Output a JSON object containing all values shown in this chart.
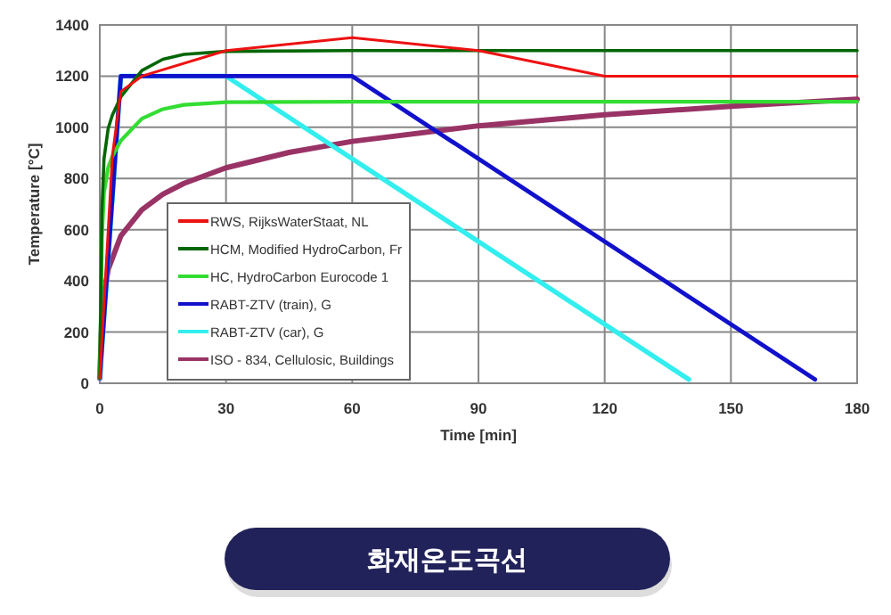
{
  "chart_data": {
    "type": "line",
    "xlabel": "Time [min]",
    "ylabel": "Temperature [°C]",
    "xlim": [
      0,
      180
    ],
    "ylim": [
      0,
      1400
    ],
    "xticks": [
      0,
      30,
      60,
      90,
      120,
      150,
      180
    ],
    "yticks": [
      0,
      200,
      400,
      600,
      800,
      1000,
      1200,
      1400
    ],
    "grid": true,
    "legend": "bottom left",
    "series": [
      {
        "name": "RWS, RijksWaterStaat, NL",
        "color": "#ee1111",
        "x": [
          0,
          3,
          5,
          10,
          30,
          60,
          90,
          120,
          180
        ],
        "values": [
          20,
          890,
          1140,
          1200,
          1300,
          1350,
          1300,
          1200,
          1200
        ]
      },
      {
        "name": "HCM, Modified HydroCarbon, Fr",
        "color": "#006600",
        "x": [
          0,
          0.5,
          1,
          2,
          3,
          5,
          10,
          15,
          20,
          30,
          60,
          180
        ],
        "values": [
          20,
          670,
          877,
          996,
          1048,
          1119,
          1222,
          1266,
          1285,
          1297,
          1300,
          1300
        ]
      },
      {
        "name": "HC, HydroCarbon Eurocode 1",
        "color": "#33dd33",
        "x": [
          0,
          0.5,
          1,
          2,
          3,
          5,
          10,
          15,
          20,
          30,
          60,
          180
        ],
        "values": [
          20,
          569,
          744,
          844,
          887,
          948,
          1034,
          1071,
          1088,
          1098,
          1100,
          1100
        ]
      },
      {
        "name": "RABT-ZTV (train), G",
        "color": "#1111cc",
        "x": [
          0,
          5,
          60,
          170
        ],
        "values": [
          20,
          1200,
          1200,
          15
        ]
      },
      {
        "name": "RABT-ZTV (car), G",
        "color": "#33eeee",
        "x": [
          0,
          5,
          30,
          140
        ],
        "values": [
          20,
          1200,
          1200,
          15
        ]
      },
      {
        "name": "ISO - 834, Cellulosic, Buildings",
        "color": "#993366",
        "x": [
          0,
          0.5,
          1,
          2,
          5,
          10,
          15,
          20,
          30,
          45,
          60,
          90,
          120,
          150,
          180
        ],
        "values": [
          20,
          261,
          349,
          445,
          576,
          678,
          739,
          781,
          842,
          902,
          945,
          1006,
          1049,
          1082,
          1110
        ]
      }
    ],
    "annotations": [
      "화재온도곡선"
    ]
  }
}
